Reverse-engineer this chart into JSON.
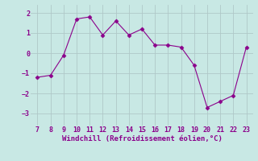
{
  "x": [
    7,
    8,
    9,
    10,
    11,
    12,
    13,
    14,
    15,
    16,
    17,
    18,
    19,
    20,
    21,
    22,
    23
  ],
  "y": [
    -1.2,
    -1.1,
    -0.1,
    1.7,
    1.8,
    0.9,
    1.6,
    0.9,
    1.2,
    0.4,
    0.4,
    0.3,
    -0.6,
    -2.7,
    -2.4,
    -2.1,
    0.3
  ],
  "line_color": "#8b008b",
  "marker": "D",
  "marker_size": 2.5,
  "bg_color": "#c8e8e4",
  "grid_color": "#b0c8c8",
  "xlabel": "Windchill (Refroidissement éolien,°C)",
  "xlabel_color": "#8b008b",
  "tick_color": "#8b008b",
  "xlim": [
    6.5,
    23.5
  ],
  "ylim": [
    -3.6,
    2.4
  ],
  "yticks": [
    -3,
    -2,
    -1,
    0,
    1,
    2
  ],
  "xticks": [
    7,
    8,
    9,
    10,
    11,
    12,
    13,
    14,
    15,
    16,
    17,
    18,
    19,
    20,
    21,
    22,
    23
  ],
  "tick_fontsize": 6.0,
  "xlabel_fontsize": 6.5
}
